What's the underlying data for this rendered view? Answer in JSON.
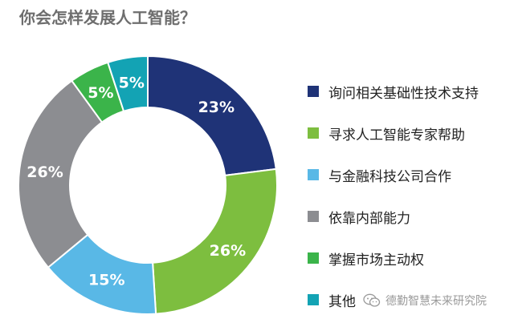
{
  "title": "你会怎样发展人工智能？",
  "chart_data": {
    "type": "pie",
    "donut": true,
    "title": "你会怎样发展人工智能？",
    "categories": [
      "询问相关基础性技术支持",
      "寻求人工智能专家帮助",
      "与金融科技公司合作",
      "依靠内部能力",
      "掌握市场主动权",
      "其他"
    ],
    "values": [
      23,
      26,
      15,
      26,
      5,
      5
    ],
    "labels": [
      "23%",
      "26%",
      "15%",
      "26%",
      "5%",
      "5%"
    ],
    "colors": [
      "#1f3377",
      "#7dbe3f",
      "#59b8e6",
      "#8c8d91",
      "#3bb44a",
      "#13a3b4"
    ],
    "start": "12 o'clock",
    "direction": "clockwise",
    "legend_position": "right"
  },
  "watermark": {
    "text": "德勤智慧未来研究院",
    "icon": "wechat-icon"
  }
}
